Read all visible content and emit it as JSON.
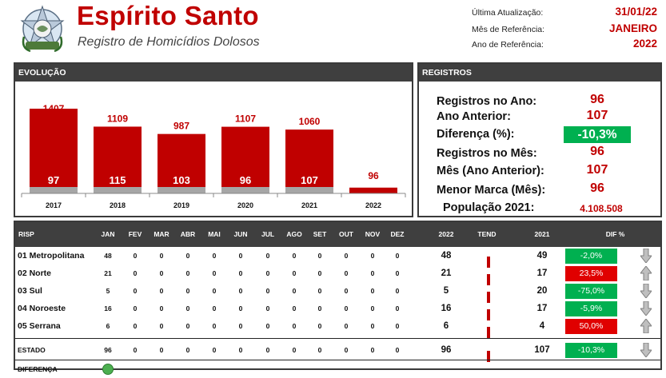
{
  "header": {
    "title": "Espírito Santo",
    "subtitle": "Registro de Homicídios Dolosos",
    "meta": [
      {
        "label": "Última Atualização:",
        "value": "31/01/22"
      },
      {
        "label": "Mês de Referência:",
        "value": "JANEIRO"
      },
      {
        "label": "Ano de Referência:",
        "value": "2022"
      }
    ]
  },
  "evolucao": {
    "heading": "EVOLUÇÃO"
  },
  "chart_data": {
    "type": "bar",
    "categories": [
      "2017",
      "2018",
      "2019",
      "2020",
      "2021",
      "2022"
    ],
    "series": [
      {
        "values": [
          1407,
          1109,
          987,
          1107,
          1060,
          96
        ]
      },
      {
        "values": [
          97,
          115,
          103,
          96,
          107,
          null
        ]
      }
    ],
    "ylim": [
      0,
      1500
    ],
    "colors": {
      "total": "#c00000",
      "month": "#a6a6a6",
      "label_total": "#c00000",
      "label_month": "#ffffff"
    }
  },
  "registros": {
    "heading": "REGISTROS",
    "items": [
      {
        "label": "Registros no Ano:",
        "value": "96"
      },
      {
        "label": "Ano Anterior:",
        "value": "107"
      },
      {
        "label": "Diferença (%):",
        "value": "-10,3%"
      },
      {
        "label": "Registros no Mês:",
        "value": "96"
      },
      {
        "label": "Mês (Ano Anterior):",
        "value": "107"
      },
      {
        "label": "Menor Marca (Mês):",
        "value": "96"
      },
      {
        "label": "População 2021:",
        "value": "4.108.508"
      }
    ]
  },
  "table": {
    "columns": [
      "RISP",
      "JAN",
      "FEV",
      "MAR",
      "ABR",
      "MAI",
      "JUN",
      "JUL",
      "AGO",
      "SET",
      "OUT",
      "NOV",
      "DEZ",
      "2022",
      "TEND",
      "2021",
      "DIF %"
    ],
    "rows": [
      {
        "name": "01 Metropolitana",
        "months": [
          "48",
          "0",
          "0",
          "0",
          "0",
          "0",
          "0",
          "0",
          "0",
          "0",
          "0",
          "0"
        ],
        "y2022": "48",
        "tend": 0.5,
        "y2021": "49",
        "dif": "-2,0%",
        "dif_color": "green",
        "arrow": "down"
      },
      {
        "name": "02 Norte",
        "months": [
          "21",
          "0",
          "0",
          "0",
          "0",
          "0",
          "0",
          "0",
          "0",
          "0",
          "0",
          "0"
        ],
        "y2022": "21",
        "tend": 0.5,
        "y2021": "17",
        "dif": "23,5%",
        "dif_color": "red",
        "arrow": "up"
      },
      {
        "name": "03 Sul",
        "months": [
          "5",
          "0",
          "0",
          "0",
          "0",
          "0",
          "0",
          "0",
          "0",
          "0",
          "0",
          "0"
        ],
        "y2022": "5",
        "tend": 0.5,
        "y2021": "20",
        "dif": "-75,0%",
        "dif_color": "green",
        "arrow": "down"
      },
      {
        "name": "04 Noroeste",
        "months": [
          "16",
          "0",
          "0",
          "0",
          "0",
          "0",
          "0",
          "0",
          "0",
          "0",
          "0",
          "0"
        ],
        "y2022": "16",
        "tend": 0.5,
        "y2021": "17",
        "dif": "-5,9%",
        "dif_color": "green",
        "arrow": "down"
      },
      {
        "name": "05 Serrana",
        "months": [
          "6",
          "0",
          "0",
          "0",
          "0",
          "0",
          "0",
          "0",
          "0",
          "0",
          "0",
          "0"
        ],
        "y2022": "6",
        "tend": 0.5,
        "y2021": "4",
        "dif": "50,0%",
        "dif_color": "red",
        "arrow": "up"
      }
    ],
    "total": {
      "name": "ESTADO",
      "months": [
        "96",
        "0",
        "0",
        "0",
        "0",
        "0",
        "0",
        "0",
        "0",
        "0",
        "0",
        "0"
      ],
      "y2022": "96",
      "tend": 0.5,
      "y2021": "107",
      "dif": "-10,3%",
      "dif_color": "green",
      "arrow": "down"
    },
    "diferenca_label": "DIFERENÇA",
    "diferenca_indicator_color": "#4caf50"
  }
}
